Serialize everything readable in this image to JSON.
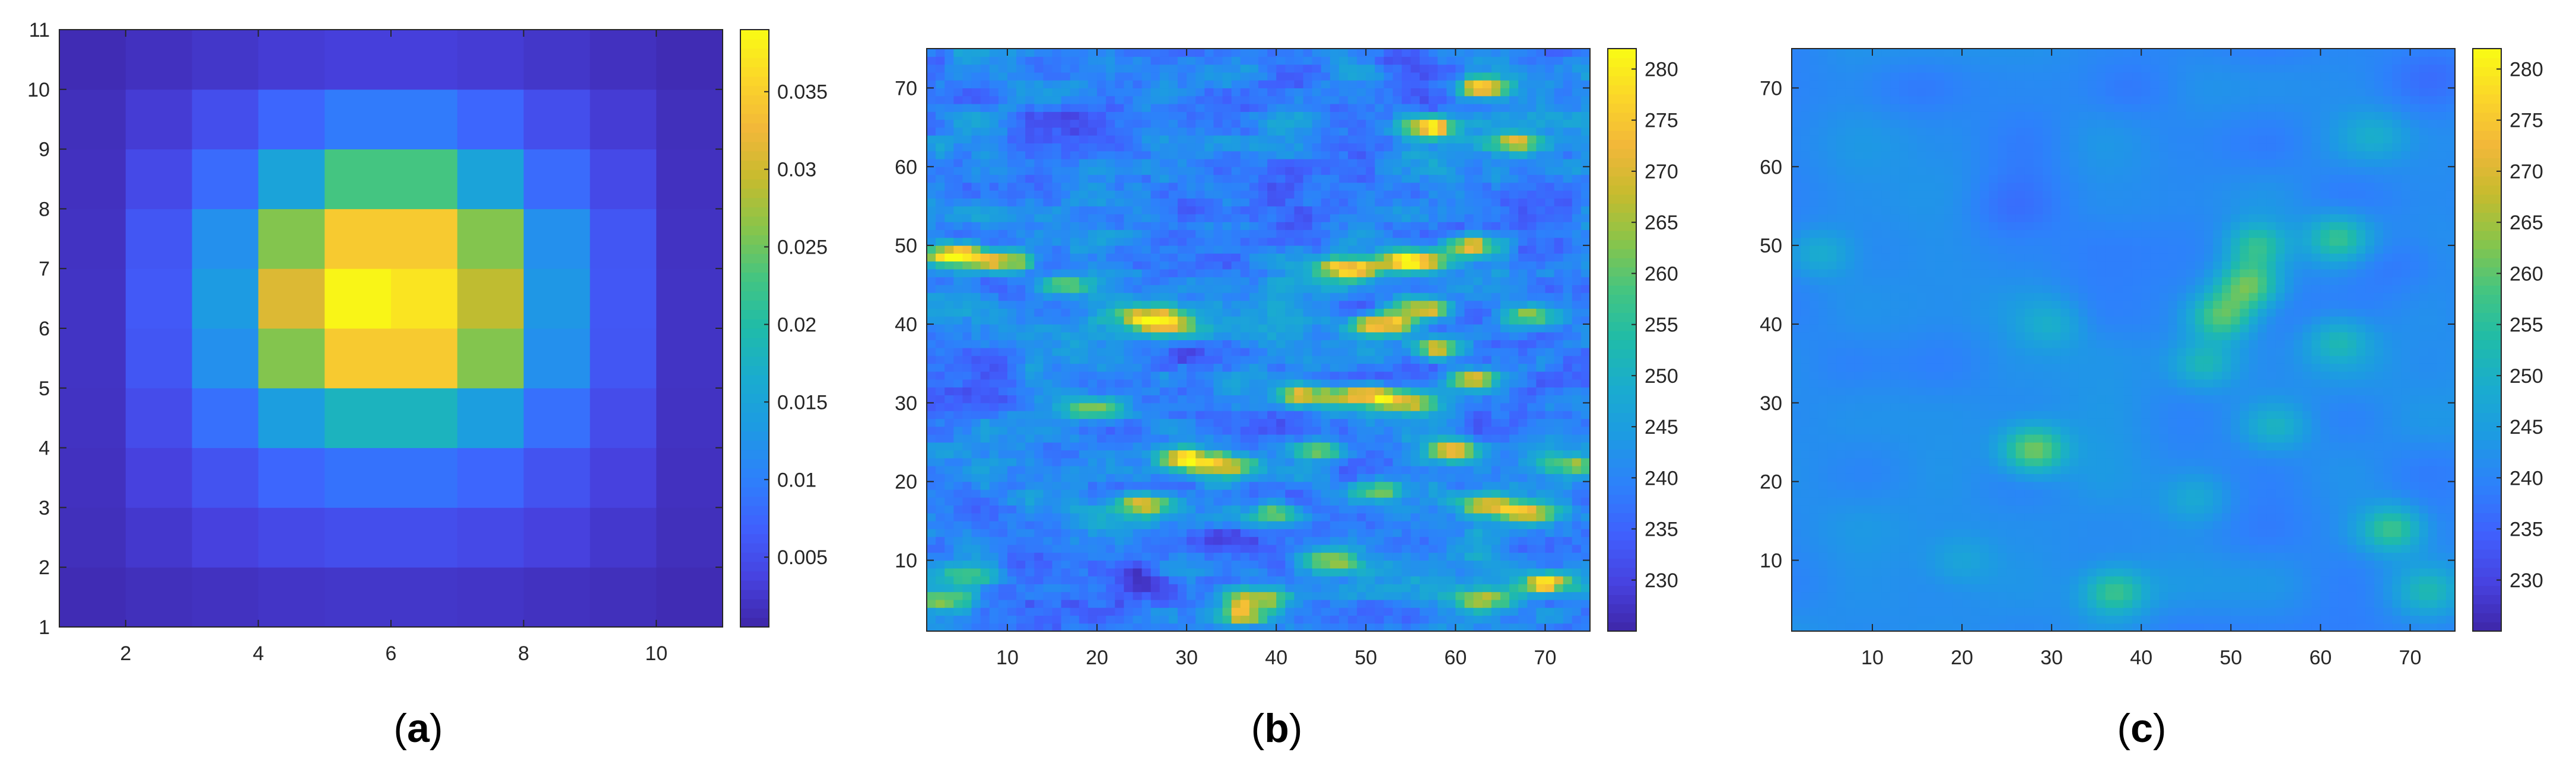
{
  "colormap": [
    "#3e26a8",
    "#4742e0",
    "#4060fd",
    "#2d81fb",
    "#1d9ae3",
    "#1aaccf",
    "#1fbba9",
    "#43c582",
    "#87c54b",
    "#c6bb2e",
    "#f2b73a",
    "#fbd629",
    "#f9fb14"
  ],
  "chart_data": [
    {
      "type": "heatmap",
      "caption": "a",
      "x_range": [
        1,
        11
      ],
      "y_range": [
        1,
        11
      ],
      "x_ticks": [
        "2",
        "4",
        "6",
        "8",
        "10"
      ],
      "y_ticks": [
        "1",
        "2",
        "3",
        "4",
        "5",
        "6",
        "7",
        "8",
        "9",
        "10",
        "11"
      ],
      "colorbar_range": [
        0.0005,
        0.039
      ],
      "colorbar_ticks": [
        "0.005",
        "0.01",
        "0.015",
        "0.02",
        "0.025",
        "0.03",
        "0.035"
      ],
      "values": [
        [
          0.0012,
          0.0016,
          0.0019,
          0.0022,
          0.0024,
          0.0024,
          0.0022,
          0.0019,
          0.0016,
          0.0012
        ],
        [
          0.0016,
          0.0026,
          0.0036,
          0.0045,
          0.005,
          0.005,
          0.0045,
          0.0036,
          0.0026,
          0.0016
        ],
        [
          0.0018,
          0.0036,
          0.0055,
          0.0075,
          0.0087,
          0.0087,
          0.0075,
          0.0055,
          0.0036,
          0.0018
        ],
        [
          0.002,
          0.0048,
          0.0085,
          0.014,
          0.018,
          0.018,
          0.014,
          0.0085,
          0.0048,
          0.002
        ],
        [
          0.0021,
          0.0058,
          0.012,
          0.026,
          0.0345,
          0.0345,
          0.026,
          0.012,
          0.0058,
          0.0021
        ],
        [
          0.0021,
          0.0062,
          0.0135,
          0.031,
          0.0385,
          0.037,
          0.029,
          0.013,
          0.006,
          0.0021
        ],
        [
          0.002,
          0.0058,
          0.012,
          0.026,
          0.0345,
          0.0345,
          0.026,
          0.012,
          0.0058,
          0.002
        ],
        [
          0.0018,
          0.0045,
          0.008,
          0.015,
          0.023,
          0.023,
          0.015,
          0.008,
          0.0045,
          0.0018
        ],
        [
          0.0016,
          0.003,
          0.005,
          0.0075,
          0.0095,
          0.0095,
          0.0075,
          0.005,
          0.003,
          0.0016
        ],
        [
          0.0012,
          0.0018,
          0.0024,
          0.003,
          0.0034,
          0.0034,
          0.003,
          0.0024,
          0.0018,
          0.0012
        ]
      ]
    },
    {
      "type": "heatmap",
      "caption": "b",
      "x_range": [
        1,
        75
      ],
      "y_range": [
        1,
        75
      ],
      "x_ticks": [
        "10",
        "20",
        "30",
        "40",
        "50",
        "60",
        "70"
      ],
      "y_ticks": [
        "10",
        "20",
        "30",
        "40",
        "50",
        "60",
        "70"
      ],
      "colorbar_range": [
        225,
        282
      ],
      "colorbar_ticks": [
        "230",
        "235",
        "240",
        "245",
        "250",
        "255",
        "260",
        "265",
        "270",
        "275",
        "280"
      ],
      "base_level": 240,
      "hot_spots": [
        {
          "x": 4,
          "y": 49,
          "value": 278
        },
        {
          "x": 10,
          "y": 48,
          "value": 275
        },
        {
          "x": 16,
          "y": 45,
          "value": 265
        },
        {
          "x": 28,
          "y": 40,
          "value": 276
        },
        {
          "x": 25,
          "y": 41,
          "value": 272
        },
        {
          "x": 30,
          "y": 23,
          "value": 278
        },
        {
          "x": 34,
          "y": 22,
          "value": 275
        },
        {
          "x": 25,
          "y": 17,
          "value": 272
        },
        {
          "x": 38,
          "y": 5,
          "value": 274
        },
        {
          "x": 36,
          "y": 3,
          "value": 270
        },
        {
          "x": 43,
          "y": 31,
          "value": 272
        },
        {
          "x": 50,
          "y": 31,
          "value": 278
        },
        {
          "x": 55,
          "y": 30,
          "value": 272
        },
        {
          "x": 52,
          "y": 40,
          "value": 280
        },
        {
          "x": 56,
          "y": 42,
          "value": 278
        },
        {
          "x": 48,
          "y": 47,
          "value": 276
        },
        {
          "x": 55,
          "y": 48,
          "value": 278
        },
        {
          "x": 62,
          "y": 50,
          "value": 274
        },
        {
          "x": 58,
          "y": 37,
          "value": 270
        },
        {
          "x": 62,
          "y": 33,
          "value": 268
        },
        {
          "x": 60,
          "y": 24,
          "value": 270
        },
        {
          "x": 64,
          "y": 17,
          "value": 272
        },
        {
          "x": 69,
          "y": 16,
          "value": 268
        },
        {
          "x": 70,
          "y": 7,
          "value": 276
        },
        {
          "x": 63,
          "y": 5,
          "value": 272
        },
        {
          "x": 57,
          "y": 65,
          "value": 275
        },
        {
          "x": 63,
          "y": 70,
          "value": 277
        },
        {
          "x": 66,
          "y": 63,
          "value": 270
        },
        {
          "x": 73,
          "y": 22,
          "value": 268
        },
        {
          "x": 46,
          "y": 10,
          "value": 270
        },
        {
          "x": 51,
          "y": 19,
          "value": 262
        },
        {
          "x": 20,
          "y": 29,
          "value": 262
        },
        {
          "x": 6,
          "y": 8,
          "value": 262
        },
        {
          "x": 3,
          "y": 5,
          "value": 268
        },
        {
          "x": 45,
          "y": 24,
          "value": 262
        },
        {
          "x": 40,
          "y": 16,
          "value": 262
        },
        {
          "x": 68,
          "y": 41,
          "value": 264
        }
      ],
      "cold_spots": [
        {
          "x": 24,
          "y": 8,
          "value": 228
        },
        {
          "x": 12,
          "y": 11,
          "value": 231
        },
        {
          "x": 34,
          "y": 13,
          "value": 232
        },
        {
          "x": 15,
          "y": 66,
          "value": 232
        },
        {
          "x": 40,
          "y": 57,
          "value": 233
        },
        {
          "x": 30,
          "y": 36,
          "value": 233
        },
        {
          "x": 70,
          "y": 50,
          "value": 231
        },
        {
          "x": 9,
          "y": 30,
          "value": 233
        },
        {
          "x": 55,
          "y": 73,
          "value": 233
        }
      ]
    },
    {
      "type": "heatmap",
      "caption": "c",
      "x_range": [
        1,
        75
      ],
      "y_range": [
        1,
        75
      ],
      "x_ticks": [
        "10",
        "20",
        "30",
        "40",
        "50",
        "60",
        "70"
      ],
      "y_ticks": [
        "10",
        "20",
        "30",
        "40",
        "50",
        "60",
        "70"
      ],
      "colorbar_range": [
        225,
        282
      ],
      "colorbar_ticks": [
        "230",
        "235",
        "240",
        "245",
        "250",
        "255",
        "260",
        "265",
        "270",
        "275",
        "280"
      ],
      "base_level": 241,
      "warm_regions": [
        {
          "x": 52,
          "y": 45,
          "value": 262
        },
        {
          "x": 49,
          "y": 41,
          "value": 260
        },
        {
          "x": 53,
          "y": 50,
          "value": 258
        },
        {
          "x": 28,
          "y": 24,
          "value": 263
        },
        {
          "x": 37,
          "y": 6,
          "value": 258
        },
        {
          "x": 68,
          "y": 14,
          "value": 258
        },
        {
          "x": 62,
          "y": 51,
          "value": 256
        },
        {
          "x": 47,
          "y": 35,
          "value": 252
        },
        {
          "x": 4,
          "y": 49,
          "value": 250
        },
        {
          "x": 55,
          "y": 27,
          "value": 250
        },
        {
          "x": 62,
          "y": 38,
          "value": 251
        },
        {
          "x": 30,
          "y": 40,
          "value": 248
        },
        {
          "x": 46,
          "y": 18,
          "value": 248
        },
        {
          "x": 66,
          "y": 64,
          "value": 248
        },
        {
          "x": 72,
          "y": 6,
          "value": 250
        },
        {
          "x": 20,
          "y": 10,
          "value": 246
        }
      ],
      "cool_regions": [
        {
          "x": 40,
          "y": 70,
          "value": 237
        },
        {
          "x": 15,
          "y": 70,
          "value": 238
        },
        {
          "x": 73,
          "y": 72,
          "value": 238
        },
        {
          "x": 8,
          "y": 35,
          "value": 237
        },
        {
          "x": 68,
          "y": 48,
          "value": 236
        },
        {
          "x": 25,
          "y": 55,
          "value": 238
        }
      ]
    }
  ]
}
